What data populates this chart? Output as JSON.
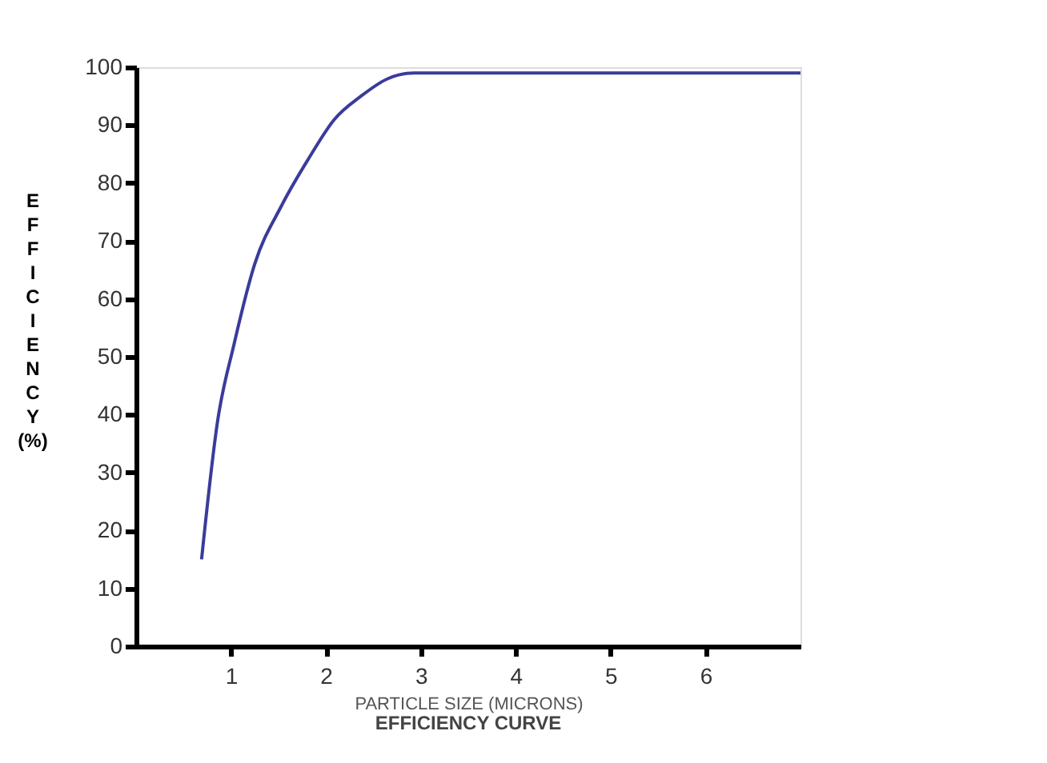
{
  "chart_data": {
    "type": "line",
    "title": "EFFICIENCY CURVE",
    "xlabel": "PARTICLE SIZE (MICRONS)",
    "ylabel": "EFFICIENCY (%)",
    "x": [
      0.69,
      0.86,
      1.03,
      1.25,
      1.53,
      1.81,
      2.09,
      2.37,
      2.65,
      2.93,
      3.2,
      7.0
    ],
    "series": [
      {
        "color": "#3b3b9c",
        "values": [
          15,
          39,
          52,
          66,
          76,
          84,
          91,
          95,
          98,
          99,
          99,
          99
        ]
      }
    ],
    "xlim": [
      0,
      7
    ],
    "xticks": [
      1,
      2,
      3,
      4,
      5,
      6
    ],
    "ylim": [
      0,
      100
    ],
    "yticks": [
      0,
      10,
      20,
      30,
      40,
      50,
      60,
      70,
      80,
      90,
      100
    ],
    "grid": false,
    "marker": "none",
    "line_style": "solid"
  }
}
